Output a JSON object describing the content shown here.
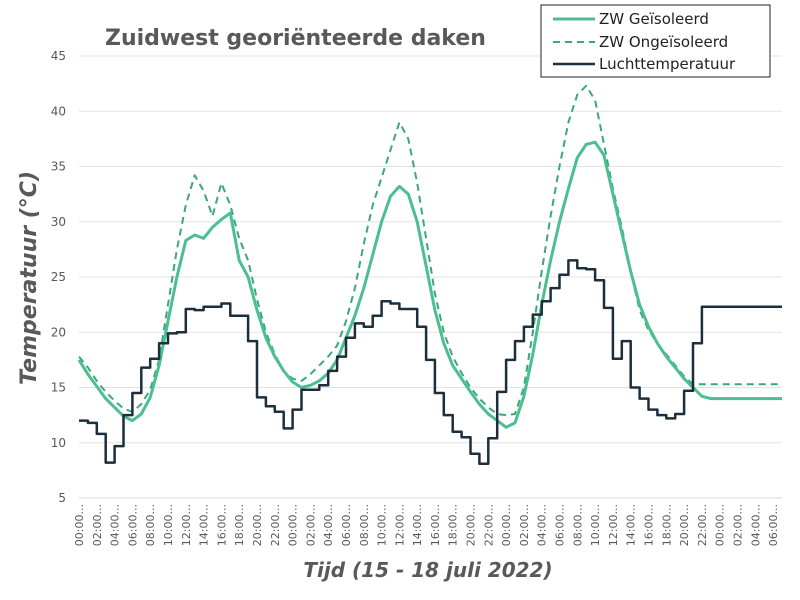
{
  "chart_data": {
    "type": "line",
    "title": "Zuidwest georiënteerde daken",
    "xlabel": "Tijd (15 - 18 juli 2022)",
    "ylabel": "Temperatuur (°C)",
    "ylim": [
      5,
      45
    ],
    "yticks": [
      5,
      10,
      15,
      20,
      25,
      30,
      35,
      40,
      45
    ],
    "x_hours": [
      0,
      1,
      2,
      3,
      4,
      5,
      6,
      7,
      8,
      9,
      10,
      11,
      12,
      13,
      14,
      15,
      16,
      17,
      18,
      19,
      20,
      21,
      22,
      23,
      24,
      25,
      26,
      27,
      28,
      29,
      30,
      31,
      32,
      33,
      34,
      35,
      36,
      37,
      38,
      39,
      40,
      41,
      42,
      43,
      44,
      45,
      46,
      47,
      48,
      49,
      50,
      51,
      52,
      53,
      54,
      55,
      56,
      57,
      58,
      59,
      60,
      61,
      62,
      63,
      64,
      65,
      66,
      67,
      68,
      69,
      70,
      71,
      72,
      73,
      74,
      75,
      76,
      77,
      78,
      79
    ],
    "x_tick_labels": [
      "00:00...",
      "02:00...",
      "04:00...",
      "06:00...",
      "08:00...",
      "10:00...",
      "12:00...",
      "14:00...",
      "16:00...",
      "18:00...",
      "20:00...",
      "22:00...",
      "00:00...",
      "02:00...",
      "04:00...",
      "06:00...",
      "08:00...",
      "10:00...",
      "12:00...",
      "14:00...",
      "16:00...",
      "18:00...",
      "20:00...",
      "22:00...",
      "00:00...",
      "02:00...",
      "04:00...",
      "06:00...",
      "08:00...",
      "10:00...",
      "12:00...",
      "14:00...",
      "16:00...",
      "18:00...",
      "20:00...",
      "22:00...",
      "00:00...",
      "02:00...",
      "04:00...",
      "06:00..."
    ],
    "grid": true,
    "legend_position": "top-right",
    "series": [
      {
        "name": "ZW Geïsoleerd",
        "color": "#4bbf8f",
        "style": "solid",
        "values": [
          17.5,
          16.2,
          15.1,
          14.0,
          13.2,
          12.4,
          12.0,
          12.6,
          14.1,
          17.0,
          21.0,
          25.0,
          28.3,
          28.8,
          28.5,
          29.5,
          30.2,
          30.8,
          26.5,
          25.0,
          22.0,
          19.5,
          17.8,
          16.5,
          15.5,
          15.0,
          15.2,
          15.6,
          16.3,
          17.5,
          19.5,
          21.5,
          24.0,
          27.0,
          30.0,
          32.3,
          33.2,
          32.5,
          30.0,
          26.0,
          22.0,
          19.0,
          17.0,
          15.8,
          14.6,
          13.5,
          12.6,
          12.0,
          11.4,
          11.8,
          14.2,
          18.0,
          22.5,
          26.5,
          30.0,
          33.0,
          35.8,
          37.0,
          37.2,
          36.0,
          32.5,
          29.0,
          25.5,
          22.5,
          20.5,
          19.0,
          17.8,
          16.8,
          15.8,
          15.0,
          14.2,
          14.0,
          14.0,
          14.0,
          14.0,
          14.0,
          14.0,
          14.0,
          14.0,
          14.0
        ]
      },
      {
        "name": "ZW Ongeïsoleerd",
        "color": "#3aa87a",
        "style": "dashed",
        "values": [
          17.8,
          16.8,
          15.6,
          14.6,
          13.8,
          13.1,
          12.8,
          13.5,
          14.8,
          17.5,
          22.5,
          27.5,
          31.5,
          34.2,
          32.8,
          30.5,
          33.5,
          31.5,
          28.5,
          26.5,
          23.0,
          20.0,
          18.0,
          16.5,
          15.8,
          15.6,
          16.2,
          17.0,
          17.8,
          18.8,
          21.0,
          24.0,
          28.0,
          31.5,
          34.0,
          36.5,
          39.0,
          37.5,
          33.5,
          28.5,
          23.5,
          20.0,
          17.8,
          16.3,
          15.0,
          14.0,
          13.2,
          12.6,
          12.5,
          12.6,
          15.0,
          20.0,
          25.5,
          30.5,
          35.0,
          39.0,
          41.5,
          42.3,
          41.0,
          37.0,
          33.0,
          29.5,
          25.5,
          22.0,
          20.2,
          19.0,
          18.0,
          17.0,
          16.0,
          15.3,
          15.3,
          15.3,
          15.3,
          15.3,
          15.3,
          15.3,
          15.3,
          15.3,
          15.3,
          15.3
        ]
      },
      {
        "name": "Luchttemperatuur",
        "color": "#1b2f3d",
        "style": "solid",
        "values": [
          12.0,
          11.8,
          10.8,
          8.2,
          9.7,
          12.5,
          14.5,
          16.8,
          17.6,
          19.0,
          19.9,
          20.0,
          22.1,
          22.0,
          22.3,
          22.3,
          22.6,
          21.5,
          21.5,
          19.2,
          14.1,
          13.3,
          12.8,
          11.3,
          13.0,
          14.8,
          14.8,
          15.2,
          16.5,
          17.8,
          19.5,
          20.8,
          20.5,
          21.5,
          22.8,
          22.6,
          22.1,
          22.1,
          20.5,
          17.5,
          14.5,
          12.5,
          11.0,
          10.5,
          9.0,
          8.1,
          10.4,
          14.6,
          17.5,
          19.2,
          20.5,
          21.6,
          22.8,
          24.0,
          25.2,
          26.5,
          25.8,
          25.7,
          24.7,
          22.2,
          17.6,
          19.2,
          15.0,
          14.0,
          13.0,
          12.5,
          12.2,
          12.6,
          14.7,
          19.0,
          22.3,
          22.3,
          22.3,
          22.3,
          22.3,
          22.3,
          22.3,
          22.3,
          22.3,
          22.3
        ]
      }
    ]
  }
}
